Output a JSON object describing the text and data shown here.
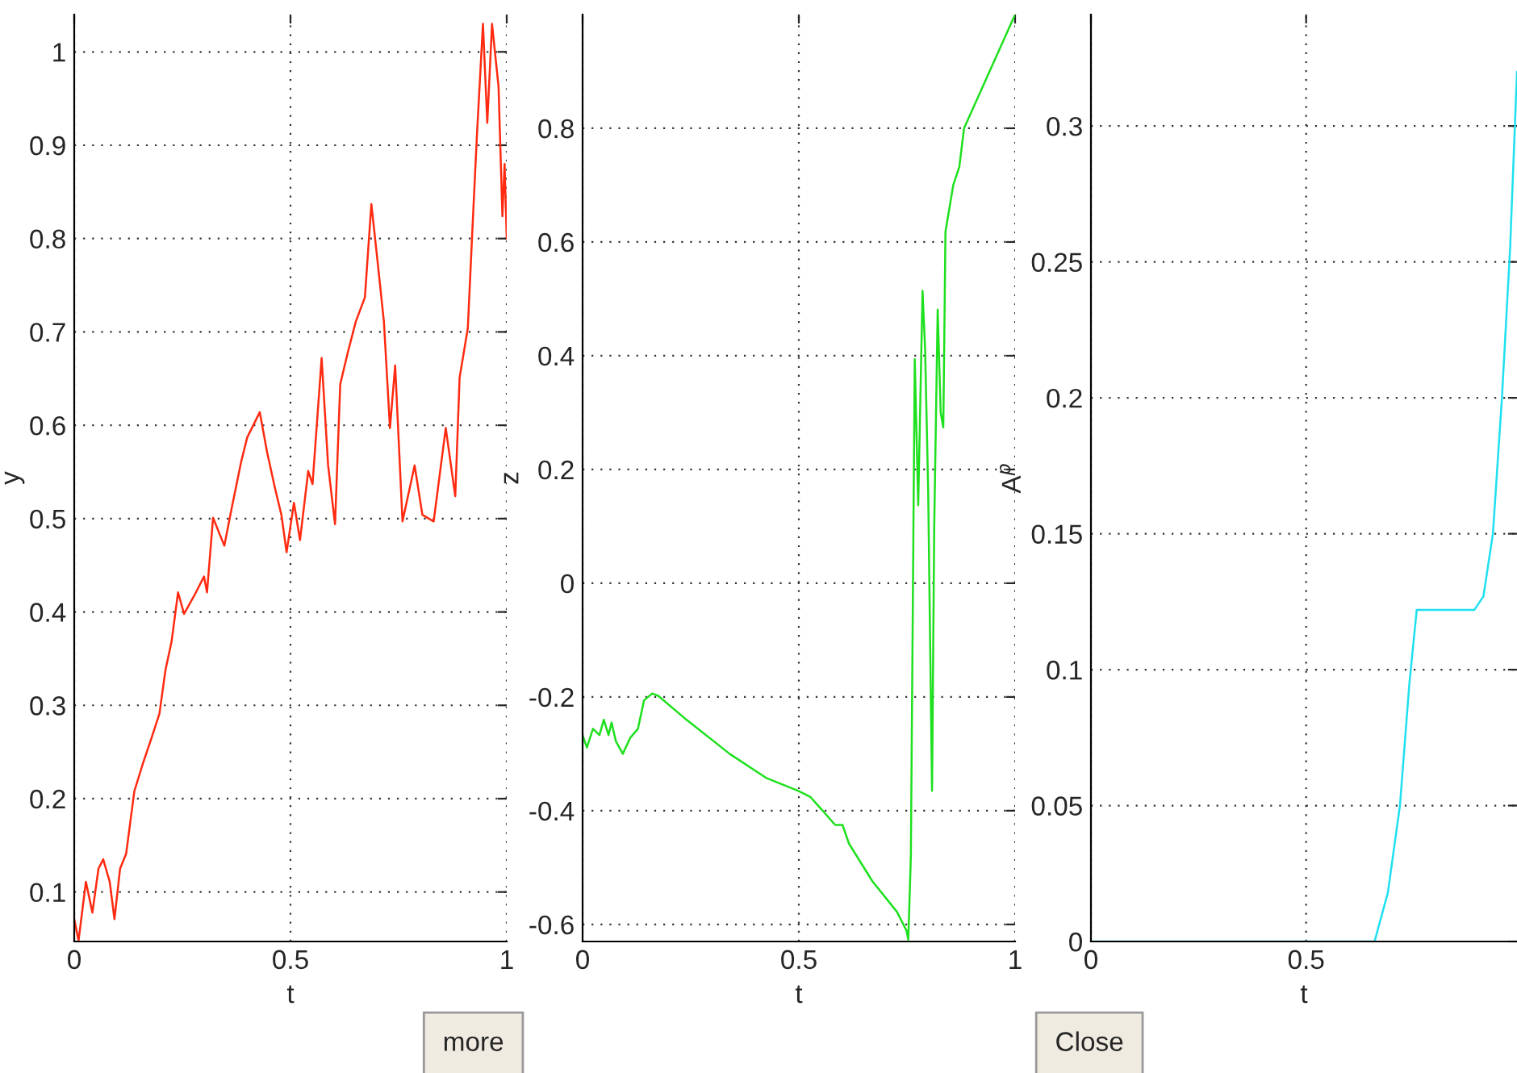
{
  "chart_data": [
    {
      "type": "line",
      "xlabel": "t",
      "ylabel": "y",
      "xlim": [
        0,
        1
      ],
      "ylim": [
        0.047,
        1.04
      ],
      "xticks": [
        0,
        0.5,
        1
      ],
      "yticks": [
        0.1,
        0.2,
        0.3,
        0.4,
        0.5,
        0.6,
        0.7,
        0.8,
        0.9,
        1
      ],
      "grid": true,
      "annotations": [
        "more"
      ],
      "series": [
        {
          "color": "#ff2a10",
          "x": [
            0,
            0.01,
            0.027,
            0.042,
            0.056,
            0.067,
            0.082,
            0.093,
            0.106,
            0.12,
            0.139,
            0.159,
            0.178,
            0.197,
            0.211,
            0.225,
            0.24,
            0.254,
            0.278,
            0.3,
            0.307,
            0.321,
            0.347,
            0.364,
            0.386,
            0.4,
            0.429,
            0.446,
            0.465,
            0.479,
            0.491,
            0.508,
            0.522,
            0.541,
            0.551,
            0.572,
            0.587,
            0.603,
            0.615,
            0.632,
            0.651,
            0.672,
            0.687,
            0.701,
            0.716,
            0.73,
            0.742,
            0.759,
            0.787,
            0.805,
            0.831,
            0.859,
            0.881,
            0.891,
            0.91,
            0.92,
            0.931,
            0.945,
            0.955,
            0.966,
            0.981,
            0.99,
            0.995,
            1.0
          ],
          "values": [
            0.071,
            0.048,
            0.111,
            0.078,
            0.125,
            0.135,
            0.111,
            0.071,
            0.125,
            0.141,
            0.208,
            0.238,
            0.264,
            0.291,
            0.338,
            0.368,
            0.421,
            0.398,
            0.418,
            0.438,
            0.421,
            0.501,
            0.471,
            0.511,
            0.561,
            0.587,
            0.614,
            0.571,
            0.531,
            0.504,
            0.464,
            0.517,
            0.477,
            0.551,
            0.537,
            0.672,
            0.557,
            0.494,
            0.644,
            0.677,
            0.711,
            0.737,
            0.837,
            0.777,
            0.711,
            0.597,
            0.664,
            0.497,
            0.557,
            0.504,
            0.497,
            0.597,
            0.524,
            0.651,
            0.704,
            0.804,
            0.91,
            1.03,
            0.924,
            1.03,
            0.963,
            0.824,
            0.88,
            0.8
          ]
        }
      ]
    },
    {
      "type": "line",
      "xlabel": "t",
      "ylabel": "z",
      "xlim": [
        0,
        1
      ],
      "ylim": [
        -0.63,
        1.0
      ],
      "xticks": [
        0,
        0.5,
        1
      ],
      "yticks": [
        -0.6,
        -0.4,
        -0.2,
        0,
        0.2,
        0.4,
        0.6,
        0.8
      ],
      "grid": true,
      "annotations": [
        "Close"
      ],
      "series": [
        {
          "color": "#1ee01e",
          "x": [
            0,
            0.01,
            0.024,
            0.039,
            0.049,
            0.06,
            0.067,
            0.077,
            0.093,
            0.11,
            0.128,
            0.142,
            0.161,
            0.175,
            0.24,
            0.34,
            0.426,
            0.498,
            0.527,
            0.584,
            0.601,
            0.616,
            0.67,
            0.727,
            0.749,
            0.753,
            0.759,
            0.768,
            0.776,
            0.786,
            0.792,
            0.799,
            0.808,
            0.813,
            0.821,
            0.828,
            0.834,
            0.839,
            0.857,
            0.871,
            0.882,
            1.0
          ],
          "values": [
            -0.267,
            -0.289,
            -0.256,
            -0.267,
            -0.24,
            -0.267,
            -0.245,
            -0.278,
            -0.3,
            -0.272,
            -0.256,
            -0.206,
            -0.194,
            -0.198,
            -0.24,
            -0.3,
            -0.343,
            -0.365,
            -0.376,
            -0.425,
            -0.425,
            -0.458,
            -0.524,
            -0.578,
            -0.611,
            -0.627,
            -0.48,
            0.394,
            0.137,
            0.514,
            0.41,
            0.164,
            -0.365,
            0.099,
            0.481,
            0.3,
            0.274,
            0.618,
            0.7,
            0.732,
            0.8,
            1.0
          ]
        }
      ]
    },
    {
      "type": "line",
      "xlabel": "t",
      "ylabel": "A$^{p}$",
      "xlim": [
        0,
        0.99
      ],
      "ylim": [
        0,
        0.341
      ],
      "xticks": [
        0,
        0.5
      ],
      "yticks": [
        0,
        0.05,
        0.1,
        0.15,
        0.2,
        0.25,
        0.3
      ],
      "grid": true,
      "series": [
        {
          "color": "#1ee0f0",
          "x": [
            0,
            0.659,
            0.69,
            0.718,
            0.74,
            0.757,
            0.891,
            0.912,
            0.934,
            0.955,
            0.974,
            0.99
          ],
          "values": [
            0,
            0,
            0.018,
            0.05,
            0.095,
            0.122,
            0.122,
            0.127,
            0.15,
            0.2,
            0.255,
            0.32
          ]
        }
      ]
    }
  ]
}
